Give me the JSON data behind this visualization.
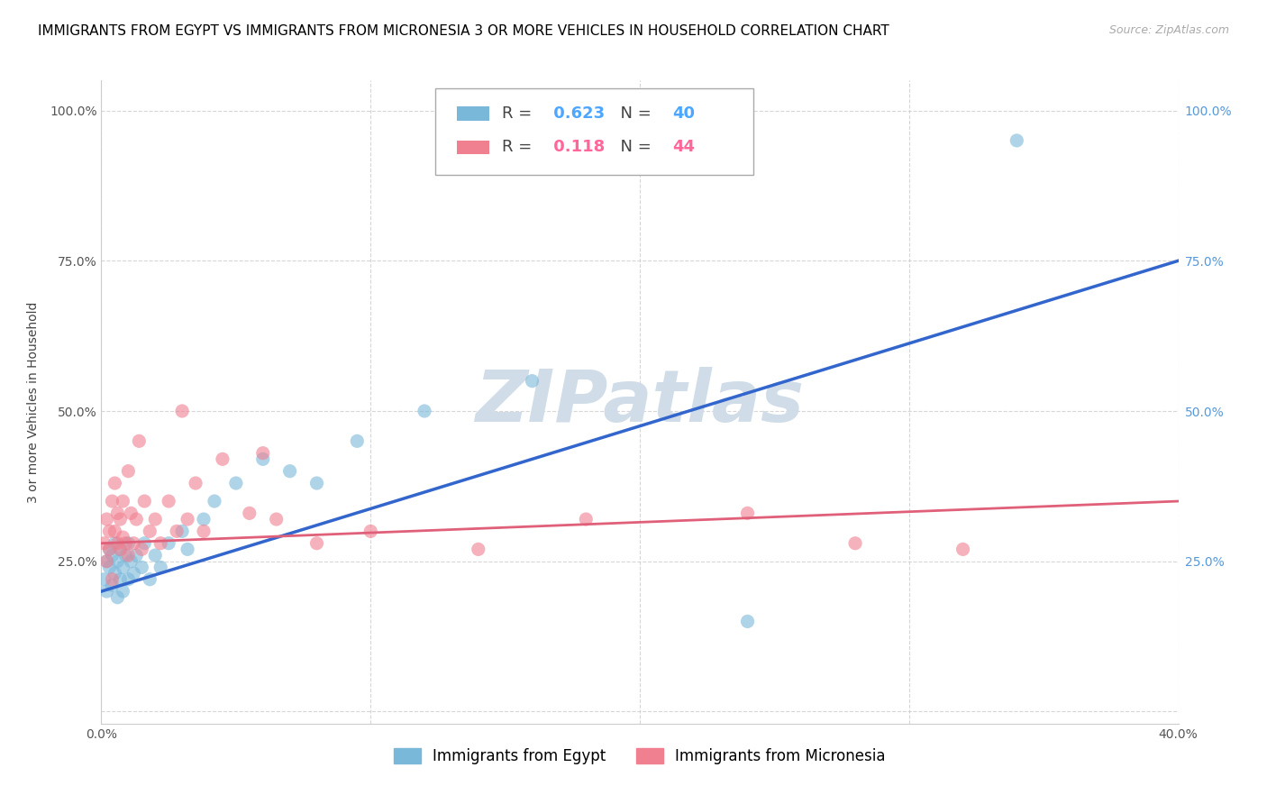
{
  "title": "IMMIGRANTS FROM EGYPT VS IMMIGRANTS FROM MICRONESIA 3 OR MORE VEHICLES IN HOUSEHOLD CORRELATION CHART",
  "source": "Source: ZipAtlas.com",
  "ylabel": "3 or more Vehicles in Household",
  "xlim": [
    0.0,
    0.4
  ],
  "ylim": [
    -0.02,
    1.05
  ],
  "xticks": [
    0.0,
    0.1,
    0.2,
    0.3,
    0.4
  ],
  "xticklabels": [
    "0.0%",
    "",
    "",
    "",
    "40.0%"
  ],
  "yticks": [
    0.0,
    0.25,
    0.5,
    0.75,
    1.0
  ],
  "yticklabels": [
    "",
    "25.0%",
    "50.0%",
    "75.0%",
    "100.0%"
  ],
  "egypt_color": "#7ab8d9",
  "micronesia_color": "#f08090",
  "egypt_R": 0.623,
  "egypt_N": 40,
  "micronesia_R": 0.118,
  "micronesia_N": 44,
  "egypt_line_color": "#3366cc",
  "micronesia_line_color": "#e0607a",
  "watermark": "ZIPatlas",
  "watermark_color": "#d0dde8",
  "legend_R_color": "#4da6ff",
  "legend_R2_color": "#ff6699",
  "egypt_scatter_x": [
    0.001,
    0.002,
    0.002,
    0.003,
    0.003,
    0.004,
    0.004,
    0.005,
    0.005,
    0.006,
    0.006,
    0.007,
    0.007,
    0.008,
    0.008,
    0.009,
    0.01,
    0.01,
    0.011,
    0.012,
    0.013,
    0.015,
    0.016,
    0.018,
    0.02,
    0.022,
    0.025,
    0.03,
    0.032,
    0.038,
    0.042,
    0.05,
    0.06,
    0.07,
    0.08,
    0.095,
    0.12,
    0.16,
    0.24,
    0.34
  ],
  "egypt_scatter_y": [
    0.22,
    0.2,
    0.25,
    0.24,
    0.27,
    0.21,
    0.26,
    0.23,
    0.28,
    0.19,
    0.25,
    0.22,
    0.27,
    0.24,
    0.2,
    0.26,
    0.22,
    0.28,
    0.25,
    0.23,
    0.26,
    0.24,
    0.28,
    0.22,
    0.26,
    0.24,
    0.28,
    0.3,
    0.27,
    0.32,
    0.35,
    0.38,
    0.42,
    0.4,
    0.38,
    0.45,
    0.5,
    0.55,
    0.15,
    0.95
  ],
  "micronesia_scatter_x": [
    0.001,
    0.002,
    0.002,
    0.003,
    0.003,
    0.004,
    0.004,
    0.005,
    0.005,
    0.006,
    0.006,
    0.007,
    0.007,
    0.008,
    0.008,
    0.009,
    0.01,
    0.01,
    0.011,
    0.012,
    0.013,
    0.014,
    0.015,
    0.016,
    0.018,
    0.02,
    0.022,
    0.025,
    0.028,
    0.032,
    0.038,
    0.045,
    0.055,
    0.065,
    0.08,
    0.1,
    0.14,
    0.18,
    0.24,
    0.28,
    0.03,
    0.035,
    0.06,
    0.32
  ],
  "micronesia_scatter_y": [
    0.28,
    0.32,
    0.25,
    0.3,
    0.27,
    0.35,
    0.22,
    0.3,
    0.38,
    0.28,
    0.33,
    0.27,
    0.32,
    0.29,
    0.35,
    0.28,
    0.4,
    0.26,
    0.33,
    0.28,
    0.32,
    0.45,
    0.27,
    0.35,
    0.3,
    0.32,
    0.28,
    0.35,
    0.3,
    0.32,
    0.3,
    0.42,
    0.33,
    0.32,
    0.28,
    0.3,
    0.27,
    0.32,
    0.33,
    0.28,
    0.5,
    0.38,
    0.43,
    0.27
  ],
  "egypt_line_x": [
    0.0,
    0.4
  ],
  "egypt_line_y": [
    0.2,
    0.75
  ],
  "micronesia_line_x": [
    0.0,
    0.4
  ],
  "micronesia_line_y": [
    0.28,
    0.35
  ],
  "title_fontsize": 11,
  "axis_label_fontsize": 10,
  "tick_fontsize": 10
}
